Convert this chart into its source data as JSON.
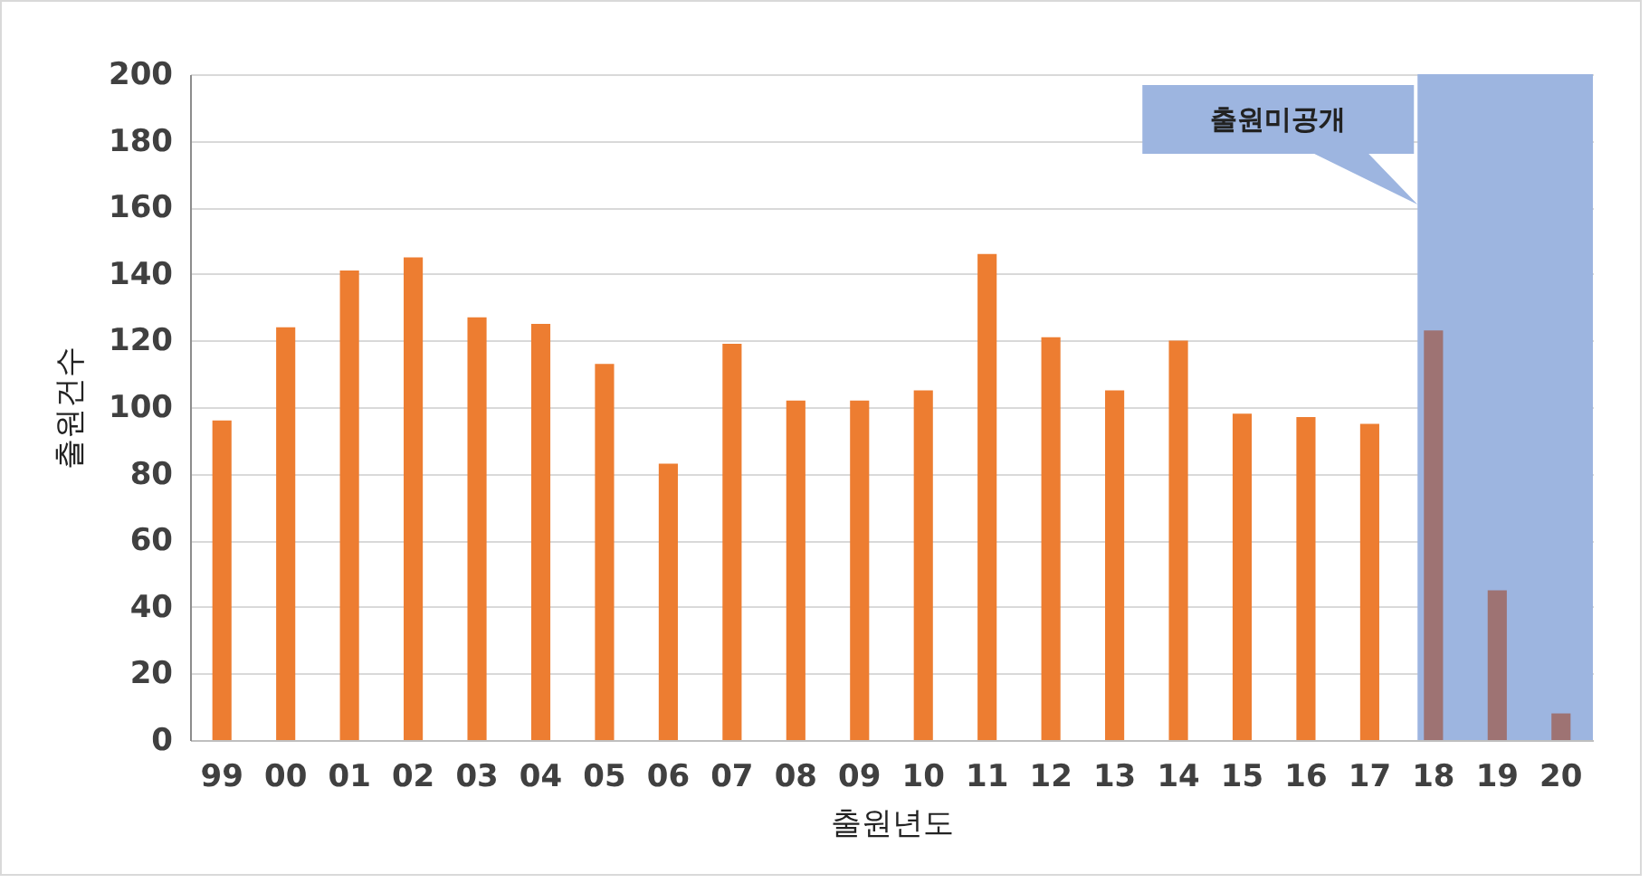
{
  "chart_data": {
    "type": "bar",
    "xlabel": "출원년도",
    "ylabel": "출원건수",
    "categories": [
      "99",
      "00",
      "01",
      "02",
      "03",
      "04",
      "05",
      "06",
      "07",
      "08",
      "09",
      "10",
      "11",
      "12",
      "13",
      "14",
      "15",
      "16",
      "17",
      "18",
      "19",
      "20"
    ],
    "values": [
      96,
      124,
      141,
      145,
      127,
      125,
      113,
      83,
      119,
      102,
      102,
      105,
      146,
      121,
      105,
      120,
      98,
      97,
      95,
      123,
      45,
      8
    ],
    "colors": [
      "#ed7d31",
      "#ed7d31",
      "#ed7d31",
      "#ed7d31",
      "#ed7d31",
      "#ed7d31",
      "#ed7d31",
      "#ed7d31",
      "#ed7d31",
      "#ed7d31",
      "#ed7d31",
      "#ed7d31",
      "#ed7d31",
      "#ed7d31",
      "#ed7d31",
      "#ed7d31",
      "#ed7d31",
      "#ed7d31",
      "#ed7d31",
      "#9e7373",
      "#9e7373",
      "#9e7373"
    ],
    "ylim": [
      0,
      200
    ],
    "yticks": [
      0,
      20,
      40,
      60,
      80,
      100,
      120,
      140,
      160,
      180,
      200
    ],
    "grid": "y",
    "bands": [
      {
        "axis": "x",
        "from": "18",
        "to": "20",
        "label": "출원미공개",
        "color": "#9db5e0"
      }
    ]
  }
}
